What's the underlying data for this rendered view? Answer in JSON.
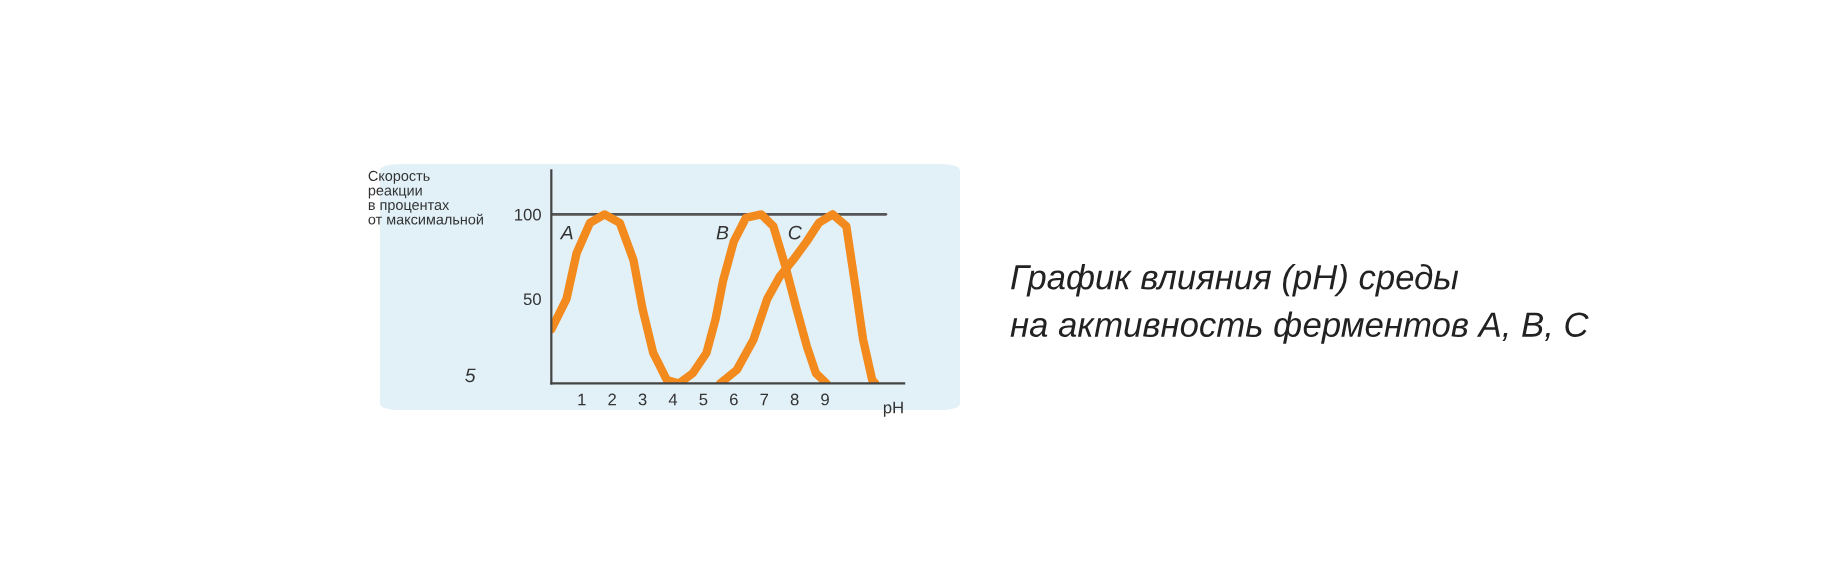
{
  "chart_data": {
    "type": "line",
    "title": "График влияния (pH) среды\nна активность ферментов А, В, С",
    "xlabel": "pH",
    "ylabel": "Скорость\nреакции\nв процентах\nот максимальной",
    "xlim": [
      0,
      11.6
    ],
    "ylim": [
      0,
      126
    ],
    "xticks": [
      1,
      2,
      3,
      4,
      5,
      6,
      7,
      8,
      9
    ],
    "yticks": [
      50,
      100
    ],
    "grid": false,
    "legend": false,
    "marker": "none",
    "line_style": "solid",
    "series": [
      {
        "color": "#f28a1e",
        "x": [
          0,
          0.5,
          0.83,
          1.27,
          1.75,
          2.25,
          2.7,
          3.0,
          3.35,
          3.8,
          4.2,
          4.65,
          5.1,
          5.4,
          5.65,
          6.0,
          6.4,
          6.9,
          7.3,
          7.7,
          8.05,
          8.4,
          8.7,
          9.05
        ],
        "values": [
          32,
          50,
          77,
          95,
          100,
          95,
          73,
          44,
          18,
          2,
          0,
          6,
          18,
          38,
          61,
          84,
          98,
          100,
          93,
          69,
          45,
          22,
          6,
          0
        ]
      },
      {
        "color": "#f28a1e",
        "x": [
          5.55,
          6.1,
          6.65,
          7.1,
          7.5,
          7.95,
          8.4,
          8.8,
          9.25,
          9.7,
          10.0,
          10.25,
          10.55,
          10.65
        ],
        "values": [
          0,
          8,
          26,
          50,
          63,
          73,
          84,
          95,
          100,
          93,
          57,
          26,
          2,
          0
        ]
      }
    ],
    "ref_lines": [
      {
        "axis": "y",
        "value": 100,
        "color": "#555555"
      }
    ],
    "annotations": [
      "A",
      "B",
      "C",
      "5"
    ]
  }
}
